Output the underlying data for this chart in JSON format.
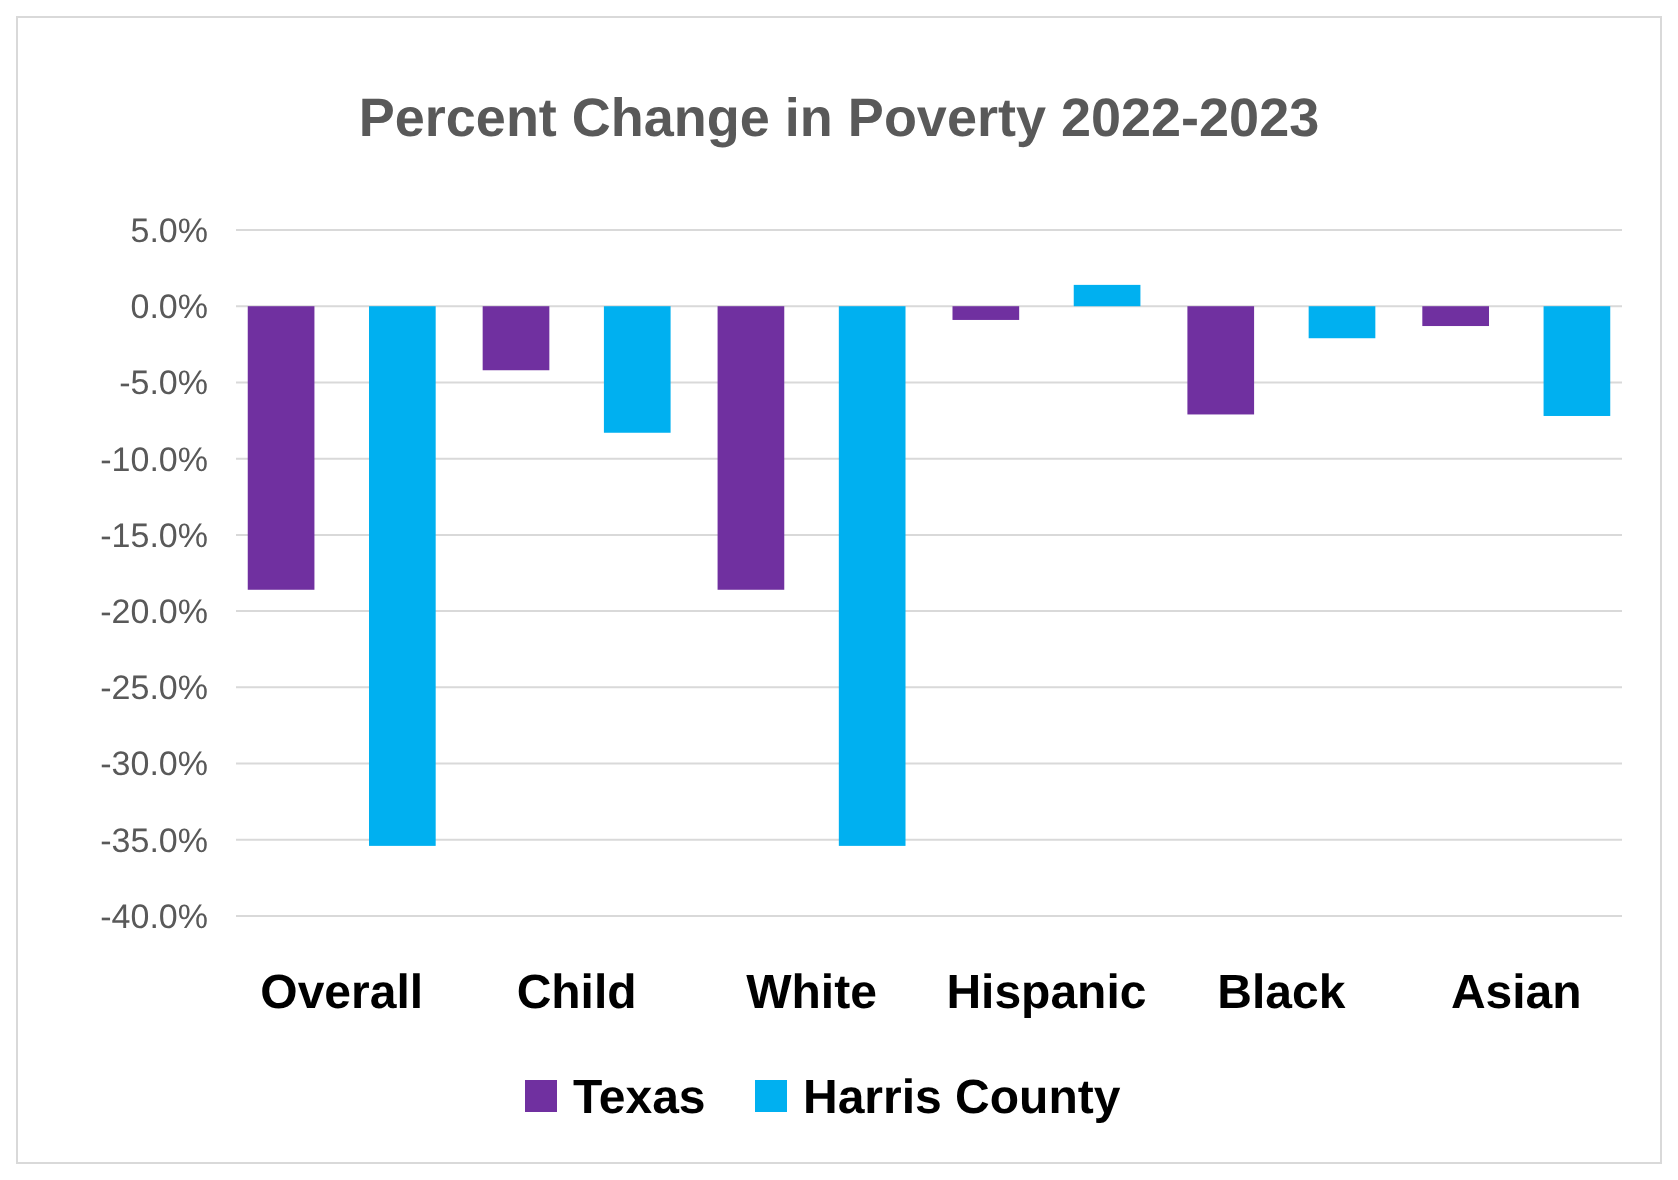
{
  "chart_data": {
    "type": "bar",
    "title": "Percent Change in Poverty 2022-2023",
    "categories": [
      "Overall",
      "Child",
      "White",
      "Hispanic",
      "Black",
      "Asian"
    ],
    "series": [
      {
        "name": "Texas",
        "color": "#7030a0",
        "values": [
          -18.6,
          -4.2,
          -18.6,
          -0.9,
          -7.1,
          -1.3
        ]
      },
      {
        "name": "Harris County",
        "color": "#00b0f0",
        "values": [
          -35.4,
          -8.3,
          -35.4,
          1.4,
          -2.1,
          -7.2
        ]
      }
    ],
    "ylim": [
      -40,
      5
    ],
    "yticks": [
      {
        "value": 5,
        "label": "5.0%"
      },
      {
        "value": 0,
        "label": "0.0%"
      },
      {
        "value": -5,
        "label": "-5.0%"
      },
      {
        "value": -10,
        "label": "-10.0%"
      },
      {
        "value": -15,
        "label": "-15.0%"
      },
      {
        "value": -20,
        "label": "-20.0%"
      },
      {
        "value": -25,
        "label": "-25.0%"
      },
      {
        "value": -30,
        "label": "-30.0%"
      },
      {
        "value": -35,
        "label": "-35.0%"
      },
      {
        "value": -40,
        "label": "-40.0%"
      }
    ],
    "grid": "y",
    "legend": "bottom"
  }
}
